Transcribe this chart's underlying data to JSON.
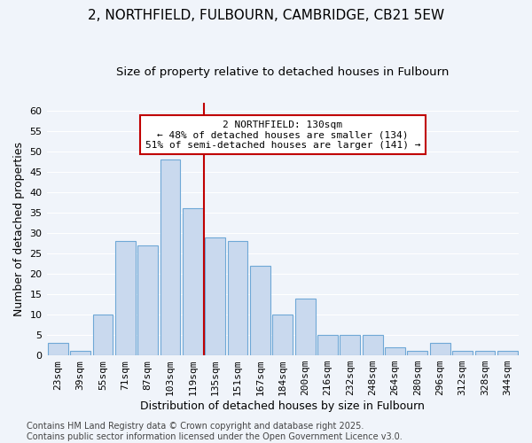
{
  "title_line1": "2, NORTHFIELD, FULBOURN, CAMBRIDGE, CB21 5EW",
  "title_line2": "Size of property relative to detached houses in Fulbourn",
  "xlabel": "Distribution of detached houses by size in Fulbourn",
  "ylabel": "Number of detached properties",
  "footer_line1": "Contains HM Land Registry data © Crown copyright and database right 2025.",
  "footer_line2": "Contains public sector information licensed under the Open Government Licence v3.0.",
  "categories": [
    "23sqm",
    "39sqm",
    "55sqm",
    "71sqm",
    "87sqm",
    "103sqm",
    "119sqm",
    "135sqm",
    "151sqm",
    "167sqm",
    "184sqm",
    "200sqm",
    "216sqm",
    "232sqm",
    "248sqm",
    "264sqm",
    "280sqm",
    "296sqm",
    "312sqm",
    "328sqm",
    "344sqm"
  ],
  "values": [
    3,
    1,
    10,
    28,
    27,
    48,
    36,
    29,
    28,
    22,
    10,
    14,
    5,
    5,
    5,
    2,
    1,
    3,
    1,
    1,
    1
  ],
  "bar_color": "#c9d9ee",
  "bar_edge_color": "#6fa8d6",
  "annotation_text": "2 NORTHFIELD: 130sqm\n← 48% of detached houses are smaller (134)\n51% of semi-detached houses are larger (141) →",
  "vline_x": 6.5,
  "vline_color": "#c00000",
  "annotation_box_edge_color": "#c00000",
  "fig_bg_color": "#f0f4fa",
  "plot_bg_color": "#f0f4fa",
  "ylim": [
    0,
    62
  ],
  "yticks": [
    0,
    5,
    10,
    15,
    20,
    25,
    30,
    35,
    40,
    45,
    50,
    55,
    60
  ],
  "grid_color": "#ffffff",
  "title_fontsize": 11,
  "subtitle_fontsize": 9.5,
  "tick_fontsize": 8,
  "label_fontsize": 9,
  "footer_fontsize": 7,
  "ann_fontsize": 8
}
